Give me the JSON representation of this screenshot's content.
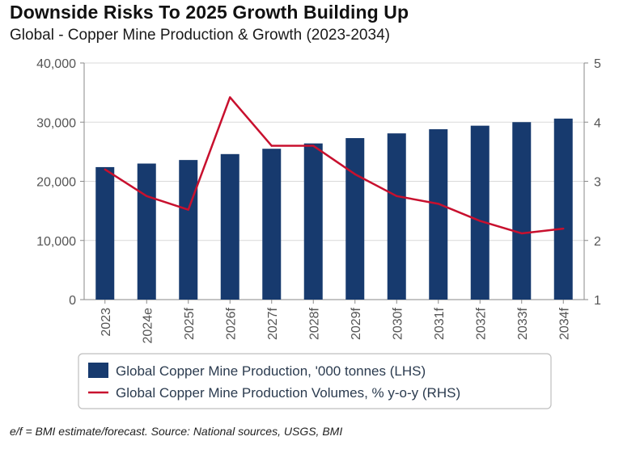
{
  "header": {
    "title": "Downside Risks To 2025 Growth Building Up",
    "subtitle": "Global - Copper Mine Production & Growth (2023-2034)"
  },
  "footer": {
    "note": "e/f = BMI estimate/forecast. Source: National sources, USGS, BMI"
  },
  "chart_data": {
    "type": "bar",
    "title": "Downside Risks To 2025 Growth Building Up",
    "subtitle": "Global - Copper Mine Production & Growth (2023-2034)",
    "categories": [
      "2023",
      "2024e",
      "2025f",
      "2026f",
      "2027f",
      "2028f",
      "2029f",
      "2030f",
      "2031f",
      "2032f",
      "2033f",
      "2034f"
    ],
    "series": [
      {
        "name": "Global Copper Mine Production, '000 tonnes (LHS)",
        "type": "bar",
        "axis": "left",
        "color": "#173a6e",
        "values": [
          22400,
          23000,
          23600,
          24600,
          25500,
          26400,
          27300,
          28100,
          28800,
          29400,
          30000,
          30600
        ]
      },
      {
        "name": "Global Copper Mine Production Volumes, % y-o-y (RHS)",
        "type": "line",
        "axis": "right",
        "color": "#c8102e",
        "values": [
          3.2,
          2.75,
          2.52,
          4.42,
          3.6,
          3.6,
          3.12,
          2.75,
          2.62,
          2.33,
          2.12,
          2.2
        ]
      }
    ],
    "y_left": {
      "min": 0,
      "max": 40000,
      "ticks": [
        0,
        10000,
        20000,
        30000,
        40000
      ],
      "tick_labels": [
        "0",
        "10,000",
        "20,000",
        "30,000",
        "40,000"
      ]
    },
    "y_right": {
      "min": 1,
      "max": 5,
      "ticks": [
        1,
        2,
        3,
        4,
        5
      ],
      "tick_labels": [
        "1",
        "2",
        "3",
        "4",
        "5"
      ]
    },
    "grid": true,
    "legend_position": "bottom"
  }
}
